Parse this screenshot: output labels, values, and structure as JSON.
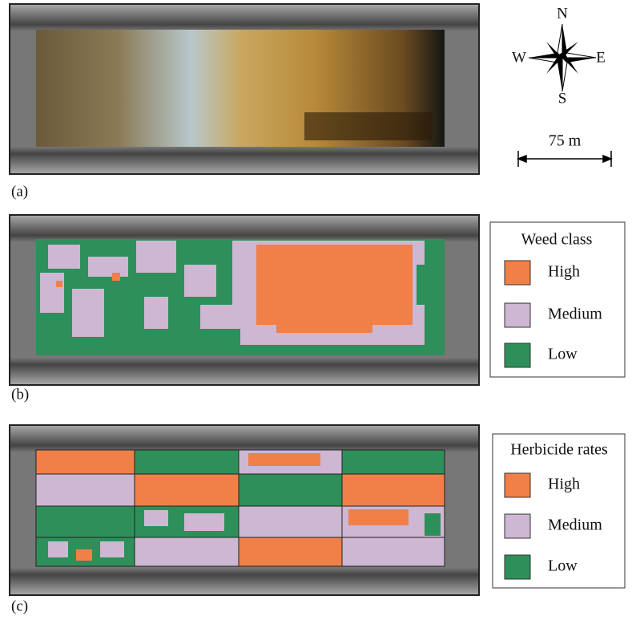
{
  "panels": [
    {
      "label": "(a)"
    },
    {
      "label": "(b)"
    },
    {
      "label": "(c)"
    }
  ],
  "compass": {
    "north": "N",
    "west": "W",
    "east": "E",
    "south": "S"
  },
  "scale_bar": "75 m",
  "legends": [
    {
      "title": "Weed class",
      "items": [
        "High",
        "Medium",
        "Low"
      ]
    },
    {
      "title": "Herbicide rates",
      "items": [
        "High",
        "Medium",
        "Low"
      ]
    }
  ]
}
